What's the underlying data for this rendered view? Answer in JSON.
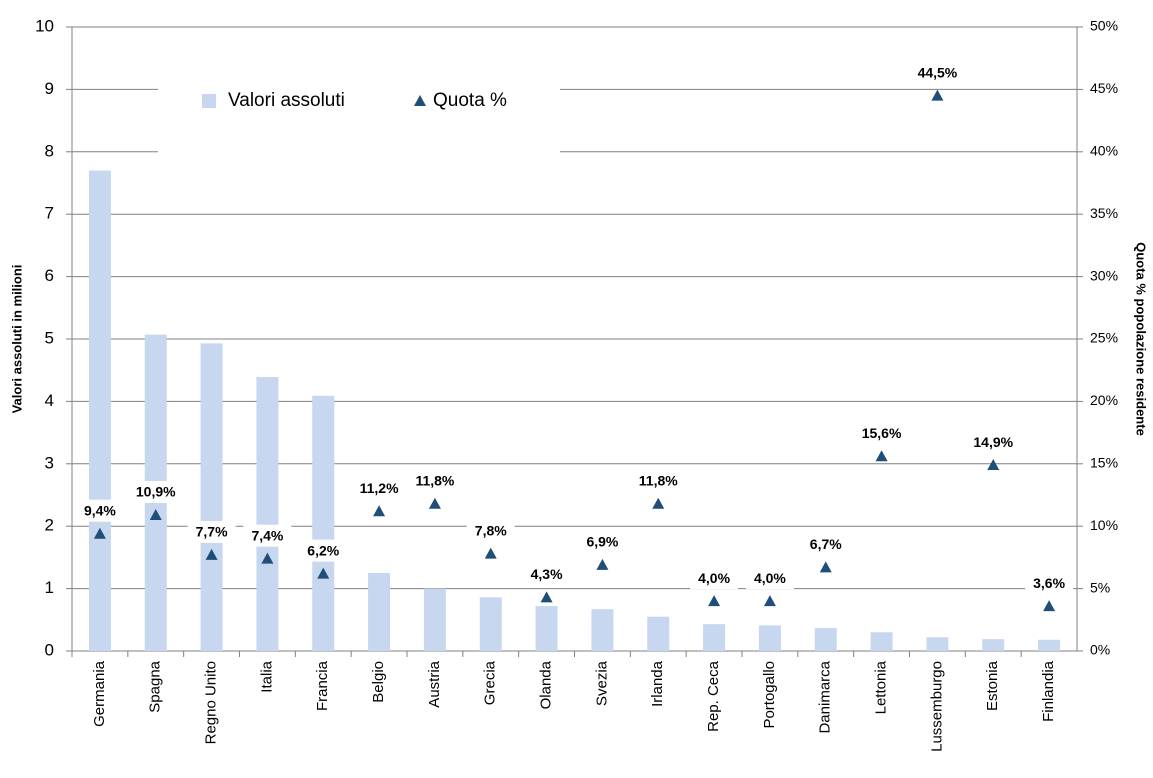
{
  "chart_data": {
    "type": "bar",
    "y_label": "Valori assoluti in milioni",
    "y2_label": "Quota % popolazione residente",
    "categories": [
      "Germania",
      "Spagna",
      "Regno Unito",
      "Italia",
      "Francia",
      "Belgio",
      "Austria",
      "Grecia",
      "Olanda",
      "Svezia",
      "Irlanda",
      "Rep. Ceca",
      "Portogallo",
      "Danimarca",
      "Lettonia",
      "Lussemburgo",
      "Estonia",
      "Finlandia"
    ],
    "series": [
      {
        "name": "Valori assoluti",
        "color": "#c6d7ef",
        "values": [
          7.7,
          5.07,
          4.93,
          4.39,
          4.09,
          1.25,
          1.0,
          0.86,
          0.72,
          0.67,
          0.55,
          0.43,
          0.41,
          0.37,
          0.3,
          0.22,
          0.19,
          0.18
        ]
      },
      {
        "name": "Quota %",
        "color": "#1f4e79",
        "axis": "y2",
        "marker": "triangle",
        "values": [
          9.4,
          10.9,
          7.7,
          7.4,
          6.2,
          11.2,
          11.8,
          7.8,
          4.3,
          6.9,
          11.8,
          4.0,
          4.0,
          6.7,
          15.6,
          44.5,
          14.9,
          3.6
        ],
        "value_labels": [
          "9,4%",
          "10,9%",
          "7,7%",
          "7,4%",
          "6,2%",
          "11,2%",
          "11,8%",
          "7,8%",
          "4,3%",
          "6,9%",
          "11,8%",
          "4,0%",
          "4,0%",
          "6,7%",
          "15,6%",
          "44,5%",
          "14,9%",
          "3,6%"
        ]
      }
    ],
    "ylim": [
      0,
      10
    ],
    "yticks": [
      0,
      1,
      2,
      3,
      4,
      5,
      6,
      7,
      8,
      9,
      10
    ],
    "y2lim": [
      0,
      50
    ],
    "y2ticks": [
      {
        "value": 0,
        "label": "0%"
      },
      {
        "value": 5,
        "label": "5%"
      },
      {
        "value": 10,
        "label": "10%"
      },
      {
        "value": 15,
        "label": "15%"
      },
      {
        "value": 20,
        "label": "20%"
      },
      {
        "value": 25,
        "label": "25%"
      },
      {
        "value": 30,
        "label": "30%"
      },
      {
        "value": 35,
        "label": "35%"
      },
      {
        "value": 40,
        "label": "40%"
      },
      {
        "value": 45,
        "label": "45%"
      },
      {
        "value": 50,
        "label": "50%"
      }
    ],
    "grid": true,
    "legend": "top"
  }
}
